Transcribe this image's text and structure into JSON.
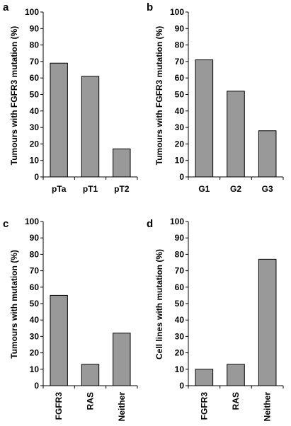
{
  "colors": {
    "bar_fill": "#999999",
    "bar_stroke": "#000000",
    "axis": "#000000",
    "background": "#ffffff"
  },
  "chart_data": [
    {
      "panel": "a",
      "type": "bar",
      "categories": [
        "pTa",
        "pT1",
        "pT2"
      ],
      "values": [
        69,
        61,
        17
      ],
      "ylabel": "Tumours with FGFR3 mutation (%)",
      "xlabel": "",
      "ylim": [
        0,
        100
      ],
      "yticks": [
        0,
        10,
        20,
        30,
        40,
        50,
        60,
        70,
        80,
        90,
        100
      ],
      "grid": false,
      "rotated_categories": false
    },
    {
      "panel": "b",
      "type": "bar",
      "categories": [
        "G1",
        "G2",
        "G3"
      ],
      "values": [
        71,
        52,
        28
      ],
      "ylabel": "Tumours with FGFR3 mutation (%)",
      "xlabel": "",
      "ylim": [
        0,
        100
      ],
      "yticks": [
        0,
        10,
        20,
        30,
        40,
        50,
        60,
        70,
        80,
        90,
        100
      ],
      "grid": false,
      "rotated_categories": false
    },
    {
      "panel": "c",
      "type": "bar",
      "categories": [
        "FGFR3",
        "RAS",
        "Neither"
      ],
      "values": [
        55,
        13,
        32
      ],
      "ylabel": "Tumours with mutation (%)",
      "xlabel": "",
      "ylim": [
        0,
        100
      ],
      "yticks": [
        0,
        10,
        20,
        30,
        40,
        50,
        60,
        70,
        80,
        90,
        100
      ],
      "grid": false,
      "rotated_categories": true
    },
    {
      "panel": "d",
      "type": "bar",
      "categories": [
        "FGFR3",
        "RAS",
        "Neither"
      ],
      "values": [
        10,
        13,
        77
      ],
      "ylabel": "Cell lines with mutation (%)",
      "xlabel": "",
      "ylim": [
        0,
        100
      ],
      "yticks": [
        0,
        10,
        20,
        30,
        40,
        50,
        60,
        70,
        80,
        90,
        100
      ],
      "grid": false,
      "rotated_categories": true
    }
  ]
}
